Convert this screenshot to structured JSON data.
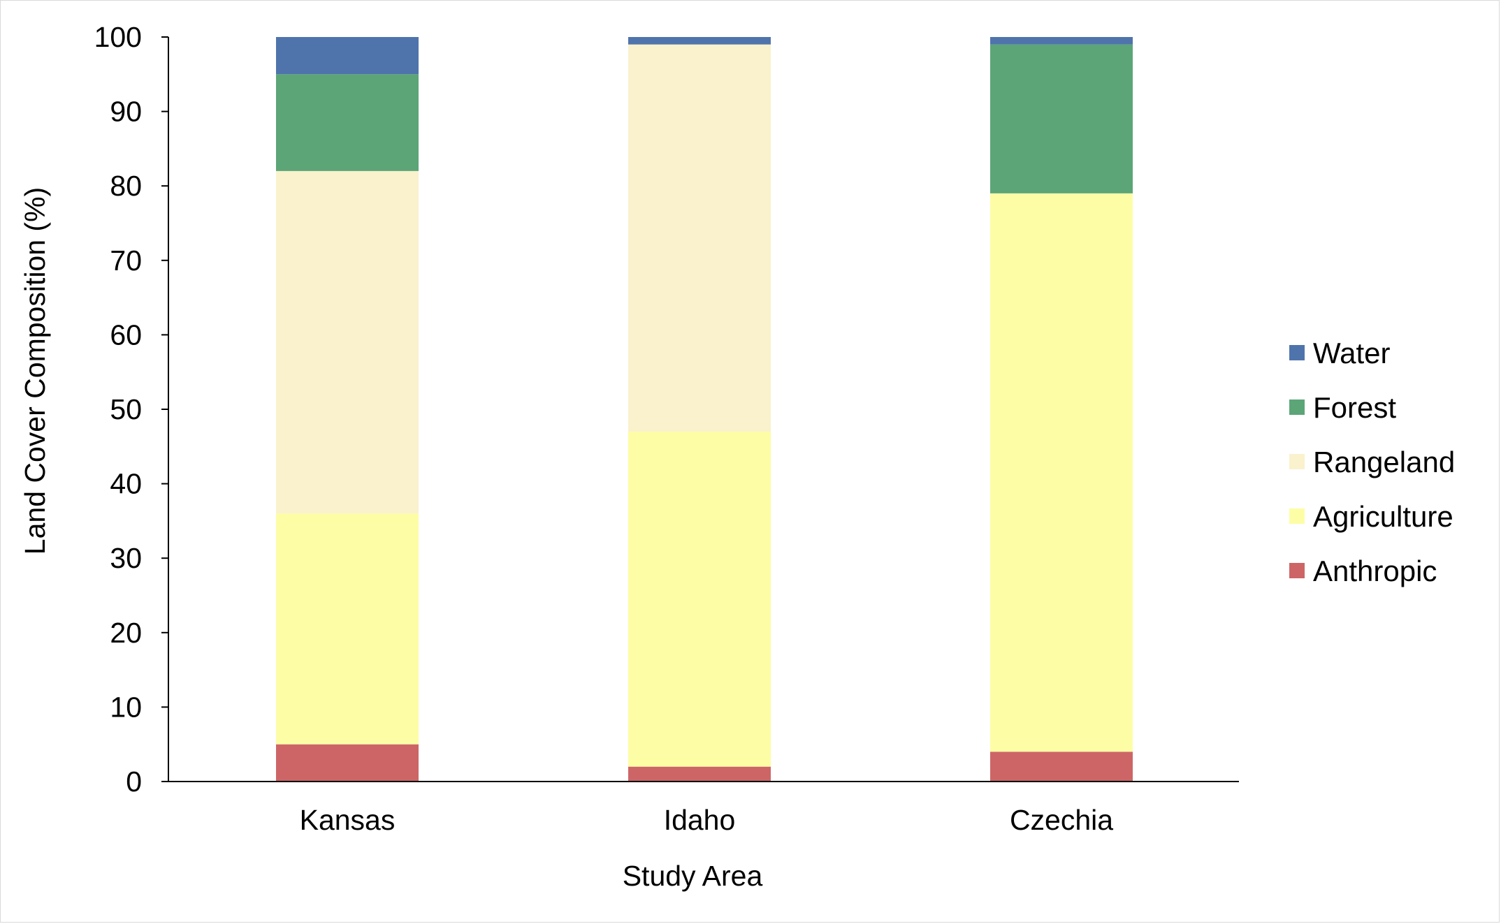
{
  "chart_data": {
    "type": "bar",
    "stacked": true,
    "categories": [
      "Kansas",
      "Idaho",
      "Czechia"
    ],
    "series": [
      {
        "name": "Anthropic",
        "color": "#cd6566",
        "values": [
          5,
          2,
          4
        ]
      },
      {
        "name": "Agriculture",
        "color": "#fdfda6",
        "values": [
          31,
          45,
          75
        ]
      },
      {
        "name": "Rangeland",
        "color": "#faf1cd",
        "values": [
          46,
          52,
          0
        ]
      },
      {
        "name": "Forest",
        "color": "#5ba577",
        "values": [
          13,
          0,
          20
        ]
      },
      {
        "name": "Water",
        "color": "#4f74ab",
        "values": [
          5,
          1,
          1
        ]
      }
    ],
    "xlabel": "Study Area",
    "ylabel": "Land Cover Composition (%)",
    "ylim": [
      0,
      100
    ],
    "yticks": [
      0,
      10,
      20,
      30,
      40,
      50,
      60,
      70,
      80,
      90,
      100
    ],
    "ytick_labels": [
      "0",
      "10",
      "20",
      "30",
      "40",
      "50",
      "60",
      "70",
      "80",
      "90",
      "100"
    ],
    "grid": false,
    "legend_position": "right",
    "legend_order": [
      "Water",
      "Forest",
      "Rangeland",
      "Agriculture",
      "Anthropic"
    ]
  }
}
